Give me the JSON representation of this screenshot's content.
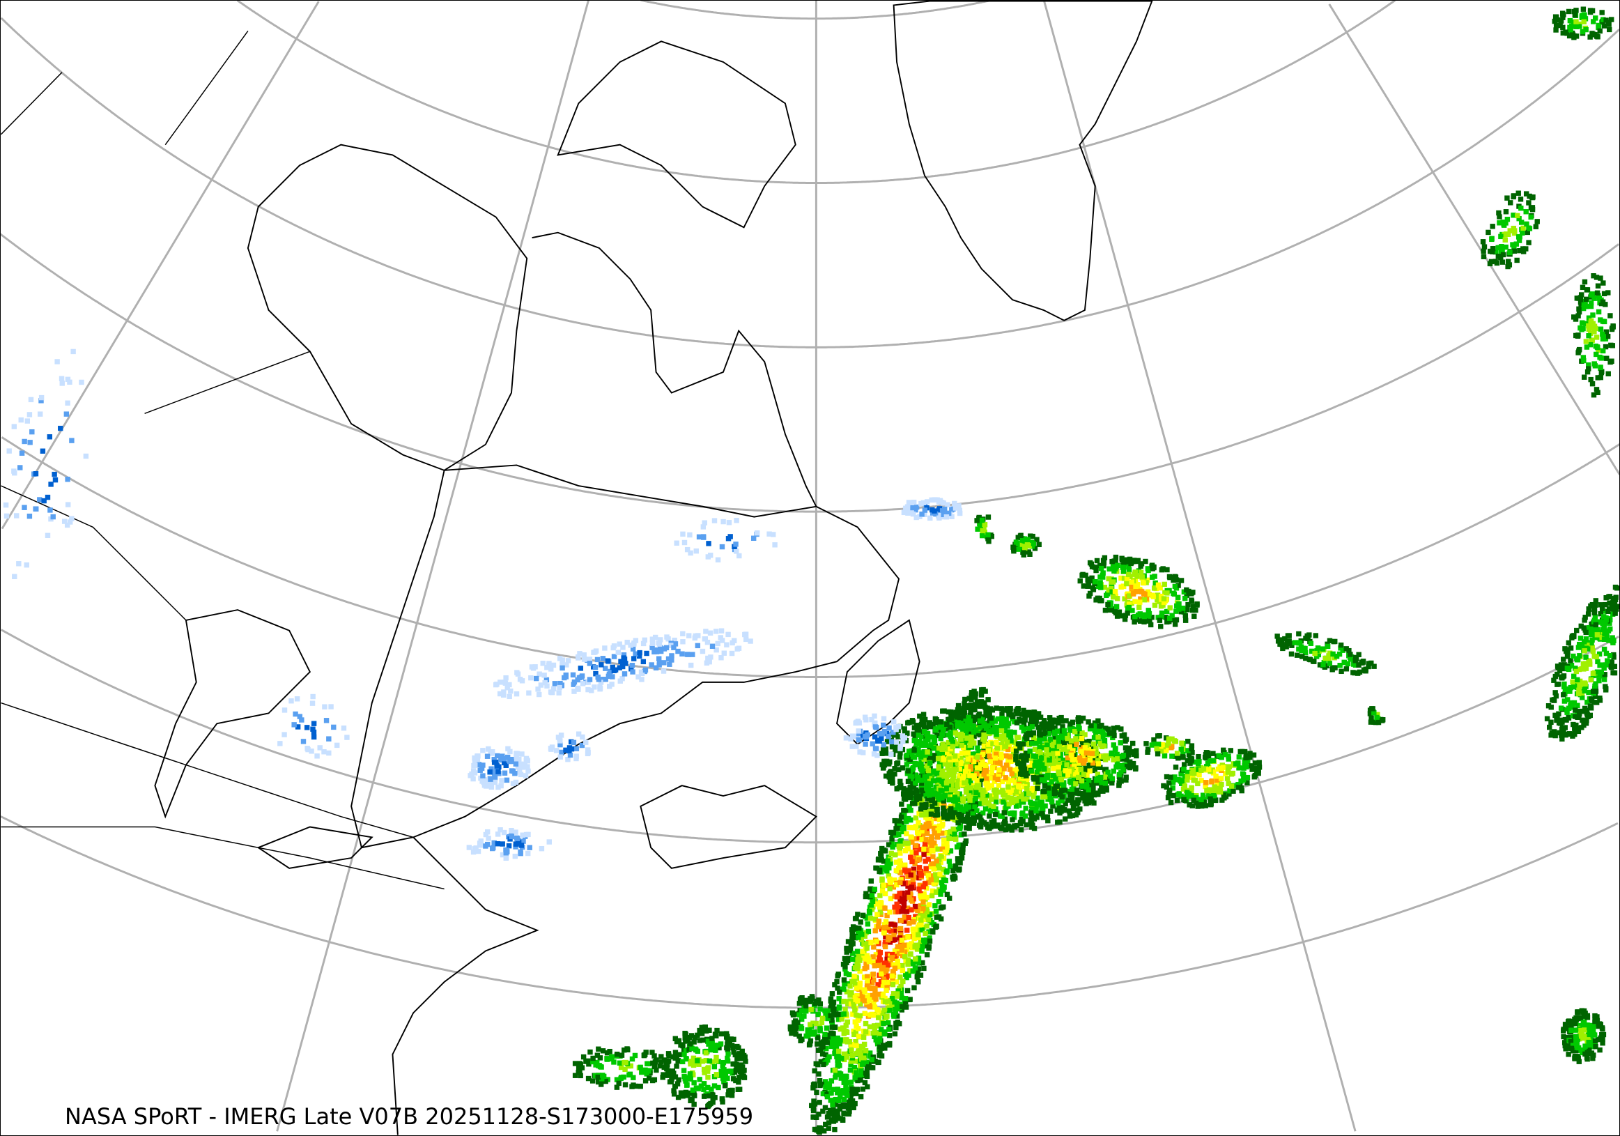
{
  "caption": "NASA SPoRT - IMERG Late V07B 20251128-S173000-E175959",
  "map": {
    "projection": "polar stereographic",
    "region": "Northeastern North America, Greenland and North Atlantic",
    "graticule_color": "#b0b0b0",
    "coastline_color": "#000000",
    "product": "IMERG precipitation rate",
    "colors": {
      "rain_light": "#006400",
      "rain_low": "#00c800",
      "rain_mod": "#a0f000",
      "rain_heavy": "#ffff00",
      "rain_vheavy": "#ffa000",
      "rain_extreme": "#ff3000",
      "rain_max": "#c00000",
      "snow_light": "#c8e0ff",
      "snow_mod": "#5aa0f0",
      "snow_heavy": "#0060d0"
    }
  }
}
